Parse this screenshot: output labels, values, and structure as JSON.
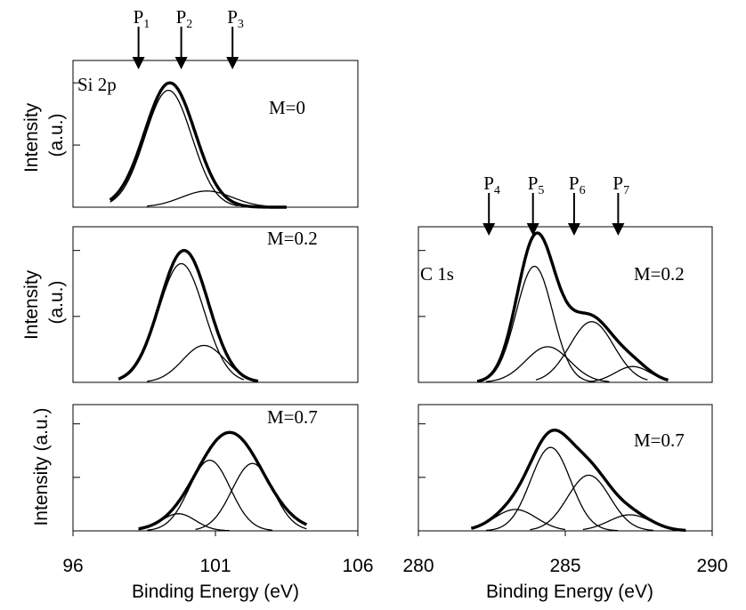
{
  "chart_data": [
    {
      "type": "line",
      "title": "",
      "ylabel": "Intensity\n(a.u.)",
      "xlabel": "",
      "xlim": [
        96,
        106
      ],
      "ylim": [
        0,
        1.18
      ],
      "yticks": [
        0.5,
        1.0
      ],
      "panel_label": "Si 2p",
      "annotation": "M=0",
      "markers": [
        {
          "label": "P",
          "sub": "1",
          "x": 98.3
        },
        {
          "label": "P",
          "sub": "2",
          "x": 99.8
        },
        {
          "label": "P",
          "sub": "3",
          "x": 101.6
        }
      ],
      "components": [
        {
          "kind": "envelope",
          "center": 99.4,
          "amp": 1.0,
          "sigma": 0.88,
          "xmin": 97.3,
          "xmax": 103.5
        },
        {
          "kind": "component",
          "center": 99.35,
          "amp": 0.94,
          "sigma": 0.82,
          "xmin": 97.3,
          "xmax": 101.8
        },
        {
          "kind": "component",
          "center": 100.7,
          "amp": 0.13,
          "sigma": 0.9,
          "xmin": 98.6,
          "xmax": 102.8
        }
      ]
    },
    {
      "type": "line",
      "title": "",
      "ylabel": "Intensity\n(a.u.)",
      "xlabel": "",
      "xlim": [
        96,
        106
      ],
      "ylim": [
        0,
        1.18
      ],
      "yticks": [
        0.5,
        1.0
      ],
      "panel_label": "",
      "annotation": "M=0.2",
      "markers": [],
      "components": [
        {
          "kind": "envelope",
          "center": 99.9,
          "amp": 1.0,
          "sigma": 0.85,
          "xmin": 97.6,
          "xmax": 102.5
        },
        {
          "kind": "component",
          "center": 99.8,
          "amp": 0.9,
          "sigma": 0.8,
          "xmin": 97.6,
          "xmax": 102.0
        },
        {
          "kind": "component",
          "center": 100.6,
          "amp": 0.28,
          "sigma": 0.75,
          "xmin": 98.6,
          "xmax": 102.5
        }
      ]
    },
    {
      "type": "line",
      "title": "",
      "ylabel": "Intensity (a.u.)",
      "xlabel": "Binding Energy (eV)",
      "xlim": [
        96,
        106
      ],
      "ylim": [
        0,
        1.18
      ],
      "xticks": [
        96,
        101,
        106
      ],
      "yticks": [
        0.5,
        1.0
      ],
      "panel_label": "",
      "annotation": "M=0.7",
      "markers": [],
      "components": [
        {
          "kind": "envelope",
          "center": 101.5,
          "amp": 0.92,
          "sigma": 1.15,
          "xmin": 98.3,
          "xmax": 104.2
        },
        {
          "kind": "component",
          "center": 100.8,
          "amp": 0.66,
          "sigma": 0.72,
          "xmin": 98.6,
          "xmax": 103.0
        },
        {
          "kind": "component",
          "center": 102.3,
          "amp": 0.63,
          "sigma": 0.72,
          "xmin": 100.3,
          "xmax": 104.2
        },
        {
          "kind": "component",
          "center": 99.7,
          "amp": 0.16,
          "sigma": 0.6,
          "xmin": 98.3,
          "xmax": 101.5
        }
      ]
    },
    {
      "type": "line",
      "title": "",
      "ylabel": "",
      "xlabel": "",
      "xlim": [
        280,
        290
      ],
      "ylim": [
        0,
        1.18
      ],
      "yticks": [
        0.5,
        1.0
      ],
      "panel_label": "C 1s",
      "annotation": "M=0.2",
      "markers": [
        {
          "label": "P",
          "sub": "4",
          "x": 282.4
        },
        {
          "label": "P",
          "sub": "5",
          "x": 283.9
        },
        {
          "label": "P",
          "sub": "6",
          "x": 285.3
        },
        {
          "label": "P",
          "sub": "7",
          "x": 286.8
        }
      ],
      "components": [
        {
          "kind": "envelope-sum",
          "xmin": 282.0,
          "xmax": 288.5
        },
        {
          "kind": "component",
          "center": 283.95,
          "amp": 0.88,
          "sigma": 0.62,
          "xmin": 282.0,
          "xmax": 286.0
        },
        {
          "kind": "component",
          "center": 284.4,
          "amp": 0.27,
          "sigma": 0.75,
          "xmin": 282.3,
          "xmax": 286.5
        },
        {
          "kind": "component",
          "center": 285.9,
          "amp": 0.46,
          "sigma": 0.75,
          "xmin": 284.0,
          "xmax": 287.8
        },
        {
          "kind": "component",
          "center": 287.3,
          "amp": 0.12,
          "sigma": 0.6,
          "xmin": 285.8,
          "xmax": 288.5
        }
      ]
    },
    {
      "type": "line",
      "title": "",
      "ylabel": "",
      "xlabel": "Binding Energy (eV)",
      "xlim": [
        280,
        290
      ],
      "ylim": [
        0,
        1.18
      ],
      "xticks": [
        280,
        285,
        290
      ],
      "yticks": [
        0.5,
        1.0
      ],
      "panel_label": "",
      "annotation": "M=0.7",
      "markers": [],
      "components": [
        {
          "kind": "envelope-sum",
          "xmin": 281.8,
          "xmax": 289.1
        },
        {
          "kind": "component",
          "center": 284.5,
          "amp": 0.78,
          "sigma": 0.68,
          "xmin": 282.3,
          "xmax": 286.8
        },
        {
          "kind": "component",
          "center": 285.8,
          "amp": 0.52,
          "sigma": 0.72,
          "xmin": 283.8,
          "xmax": 288.0
        },
        {
          "kind": "component",
          "center": 283.3,
          "amp": 0.2,
          "sigma": 0.72,
          "xmin": 281.8,
          "xmax": 285.0
        },
        {
          "kind": "component",
          "center": 287.2,
          "amp": 0.15,
          "sigma": 0.72,
          "xmin": 285.6,
          "xmax": 289.1
        }
      ]
    }
  ]
}
